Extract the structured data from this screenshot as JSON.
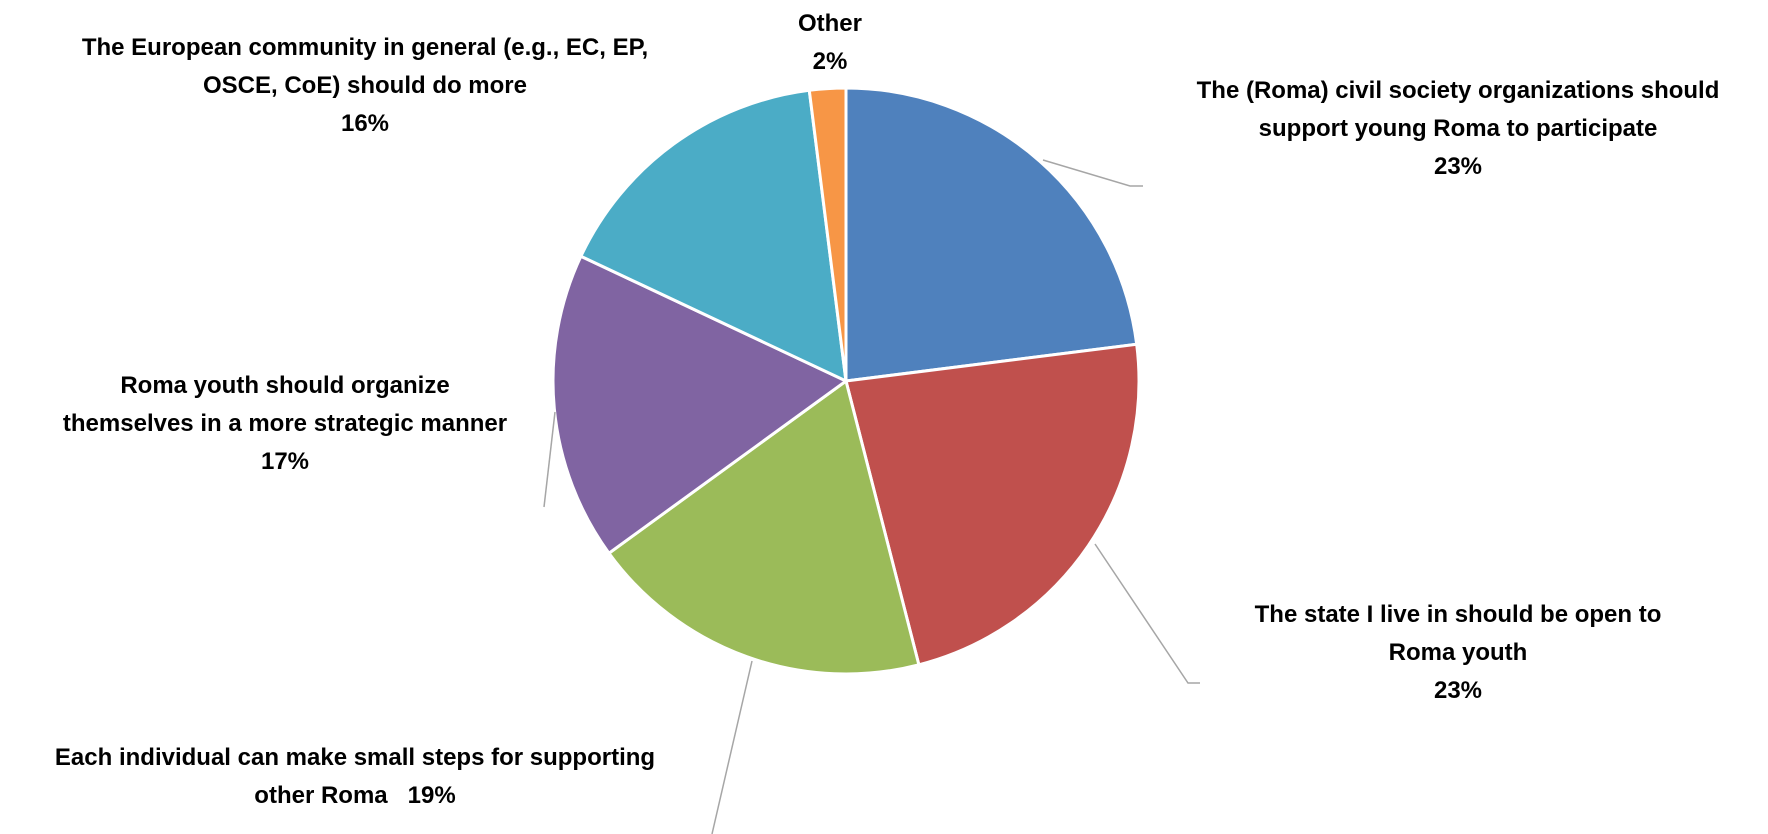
{
  "chart_data": {
    "type": "pie",
    "title": "",
    "slices": [
      {
        "label_lines": [
          "The (Roma) civil society organizations should",
          "support young Roma to participate"
        ],
        "pct_text": "23%",
        "value": 23,
        "color": "#4f81bd"
      },
      {
        "label_lines": [
          "The state I live in should be open to",
          "Roma youth"
        ],
        "pct_text": "23%",
        "value": 23,
        "color": "#c0504d"
      },
      {
        "label_lines": [
          "Each individual can make small steps for supporting",
          "other Roma"
        ],
        "pct_text": "19%",
        "value": 19,
        "color": "#9bbb59"
      },
      {
        "label_lines": [
          "Roma youth should organize",
          "themselves in a more strategic manner"
        ],
        "pct_text": "17%",
        "value": 17,
        "color": "#8064a2"
      },
      {
        "label_lines": [
          "The European community in general (e.g., EC, EP,",
          "OSCE, CoE) should do more"
        ],
        "pct_text": "16%",
        "value": 16,
        "color": "#4bacc6"
      },
      {
        "label_lines": [
          "Other"
        ],
        "pct_text": "2%",
        "value": 2,
        "color": "#f79646"
      }
    ]
  }
}
